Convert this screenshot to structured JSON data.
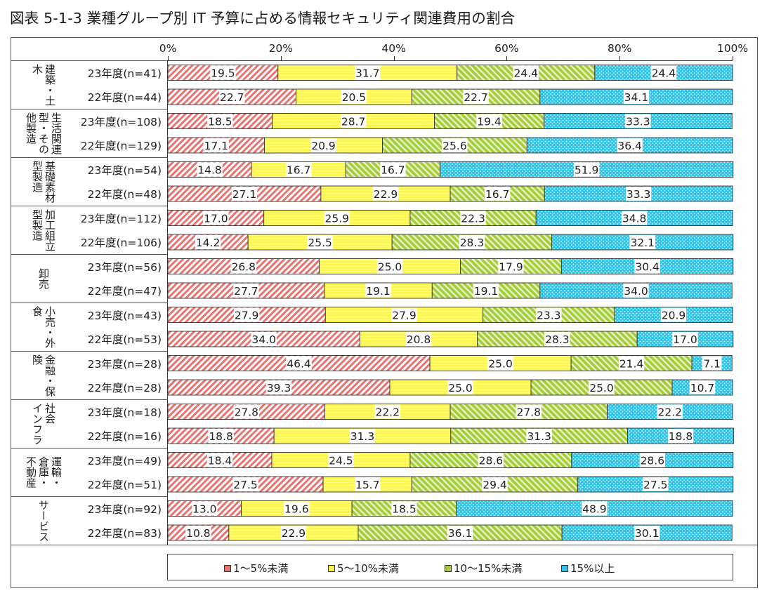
{
  "title": "図表 5-1-3  業種グループ別  IT 予算に占める情報セキュリティ関連費用の割合",
  "chart_data": {
    "type": "bar",
    "orientation": "horizontal",
    "stacked": "percent",
    "title": "図表 5-1-3  業種グループ別  IT 予算に占める情報セキュリティ関連費用の割合",
    "xlabel": "",
    "ylabel": "",
    "xlim": [
      0,
      100
    ],
    "x_ticks": [
      "0%",
      "20%",
      "40%",
      "60%",
      "80%",
      "100%"
    ],
    "legend_position": "bottom",
    "groups": [
      {
        "name": "建築・土\n木",
        "rows": [
          0,
          1
        ]
      },
      {
        "name": "生活関連\n型・その\n他製造",
        "rows": [
          2,
          3
        ]
      },
      {
        "name": "基礎素材\n型製造",
        "rows": [
          4,
          5
        ]
      },
      {
        "name": "加工組立\n型製造",
        "rows": [
          6,
          7
        ]
      },
      {
        "name": "卸売",
        "rows": [
          8,
          9
        ]
      },
      {
        "name": "小売・外\n食",
        "rows": [
          10,
          11
        ]
      },
      {
        "name": "金融・保\n険",
        "rows": [
          12,
          13
        ]
      },
      {
        "name": "社会\nインフラ",
        "rows": [
          14,
          15
        ]
      },
      {
        "name": "運輸・\n倉庫・\n不動産",
        "rows": [
          16,
          17
        ]
      },
      {
        "name": "サービス",
        "rows": [
          18,
          19
        ]
      }
    ],
    "categories": [
      "23年度(n=41)",
      "22年度(n=44)",
      "23年度(n=108)",
      "22年度(n=129)",
      "23年度(n=54)",
      "22年度(n=48)",
      "23年度(n=112)",
      "22年度(n=106)",
      "23年度(n=56)",
      "22年度(n=47)",
      "23年度(n=43)",
      "22年度(n=53)",
      "23年度(n=28)",
      "22年度(n=28)",
      "23年度(n=18)",
      "22年度(n=16)",
      "23年度(n=49)",
      "22年度(n=51)",
      "23年度(n=92)",
      "22年度(n=83)"
    ],
    "series": [
      {
        "name": "1～5%未満",
        "color": "#e8736f",
        "pattern": "diagonal-back",
        "values": [
          19.5,
          22.7,
          18.5,
          17.1,
          14.8,
          27.1,
          17.0,
          14.2,
          26.8,
          27.7,
          27.9,
          34.0,
          46.4,
          39.3,
          27.8,
          18.8,
          18.4,
          27.5,
          13.0,
          10.8
        ]
      },
      {
        "name": "5～10%未満",
        "color": "#fbf65a",
        "pattern": "horizontal",
        "values": [
          31.7,
          20.5,
          28.7,
          20.9,
          16.7,
          22.9,
          25.9,
          25.5,
          25.0,
          19.1,
          27.9,
          20.8,
          25.0,
          25.0,
          22.2,
          31.3,
          24.5,
          15.7,
          19.6,
          22.9
        ]
      },
      {
        "name": "10～15%未満",
        "color": "#a6cc3a",
        "pattern": "diagonal-forward",
        "values": [
          24.4,
          22.7,
          19.4,
          25.6,
          16.7,
          16.7,
          22.3,
          28.3,
          17.9,
          19.1,
          23.3,
          28.3,
          21.4,
          25.0,
          27.8,
          31.3,
          28.6,
          29.4,
          18.5,
          36.1
        ]
      },
      {
        "name": "15%以上",
        "color": "#2ec4e8",
        "pattern": "dots",
        "values": [
          24.4,
          34.1,
          33.3,
          36.4,
          51.9,
          33.3,
          34.8,
          32.1,
          30.4,
          34.0,
          20.9,
          17.0,
          7.1,
          10.7,
          22.2,
          18.8,
          28.6,
          27.5,
          48.9,
          30.1
        ]
      }
    ]
  }
}
